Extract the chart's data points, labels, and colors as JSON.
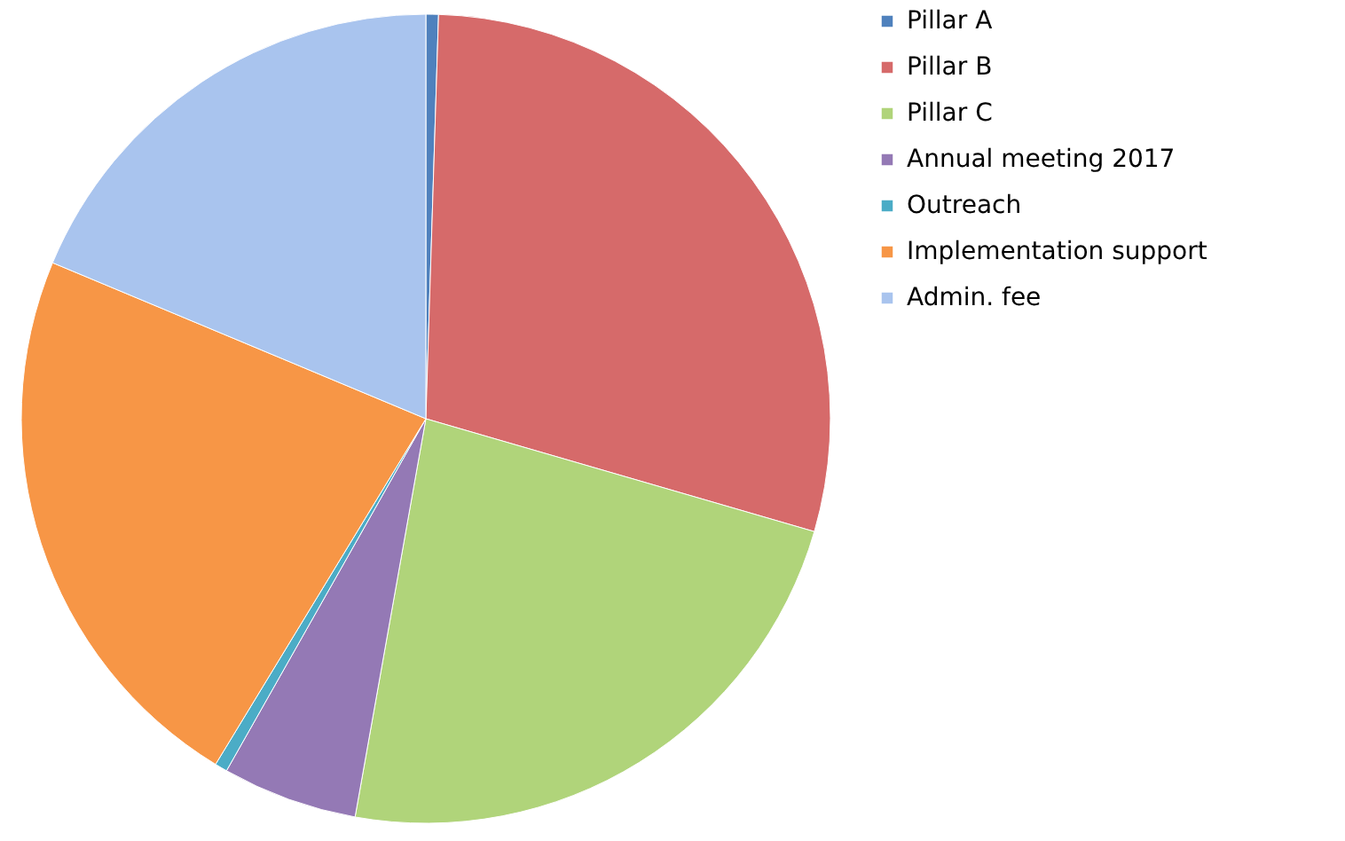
{
  "chart_data": {
    "type": "pie",
    "categories": [
      "Pillar A",
      "Pillar B",
      "Pillar C",
      "Annual meeting 2017",
      "Outreach",
      "Implementation support",
      "Admin. fee"
    ],
    "values": [
      0.5,
      29,
      23.3,
      5.4,
      0.5,
      22.6,
      18.7
    ],
    "colors": [
      "#4f81bd",
      "#d66a6a",
      "#b0d47a",
      "#9479b5",
      "#4bacc6",
      "#f79646",
      "#a9c4ee"
    ],
    "legend": "right"
  }
}
